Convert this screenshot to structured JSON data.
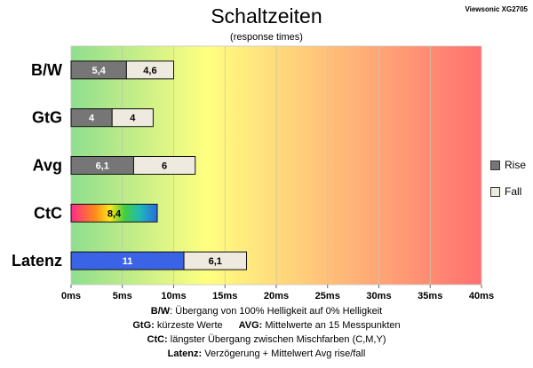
{
  "device": "Viewsonic XG2705",
  "chart_data": {
    "type": "bar",
    "orientation": "horizontal",
    "stacked": true,
    "title": "Schaltzeiten",
    "subtitle": "(response times)",
    "categories": [
      "B/W",
      "GtG",
      "Avg",
      "CtC",
      "Latenz"
    ],
    "series": [
      {
        "name": "Rise",
        "values": [
          5.4,
          4,
          6.1,
          8.4,
          11
        ],
        "labels": [
          "5,4",
          "4",
          "6,1",
          "8,4",
          "11"
        ]
      },
      {
        "name": "Fall",
        "values": [
          4.6,
          4,
          6,
          null,
          6.1
        ],
        "labels": [
          "4,6",
          "4",
          "6",
          "",
          "6,1"
        ]
      }
    ],
    "special_fills": {
      "CtC": "rainbow",
      "Latenz": "#3b63e6"
    },
    "xlim": [
      0,
      40
    ],
    "xticks": [
      "0ms",
      "5ms",
      "10ms",
      "15ms",
      "20ms",
      "25ms",
      "30ms",
      "35ms",
      "40ms"
    ],
    "background_gradient": [
      "#8fde8f",
      "#ffff80",
      "#ff7070"
    ],
    "colors": {
      "rise": "#767676",
      "fall": "#eeeae0"
    },
    "legend_position": "right"
  },
  "notes": {
    "bw_key": "B/W",
    "bw_text": ":  Übergang von 100% Helligkeit auf 0% Helligkeit",
    "gtg_key": "GtG:",
    "gtg_text": " kürzeste  Werte",
    "avg_key": "AVG:",
    "avg_text": " Mittelwerte  an 15 Messpunkten",
    "ctc_key": "CtC:",
    "ctc_text": " längster Übergang  zwischen Mischfarben  (C,M,Y)",
    "lat_key": "Latenz:",
    "lat_text": " Verzögerung  + Mittelwert  Avg rise/fall"
  }
}
